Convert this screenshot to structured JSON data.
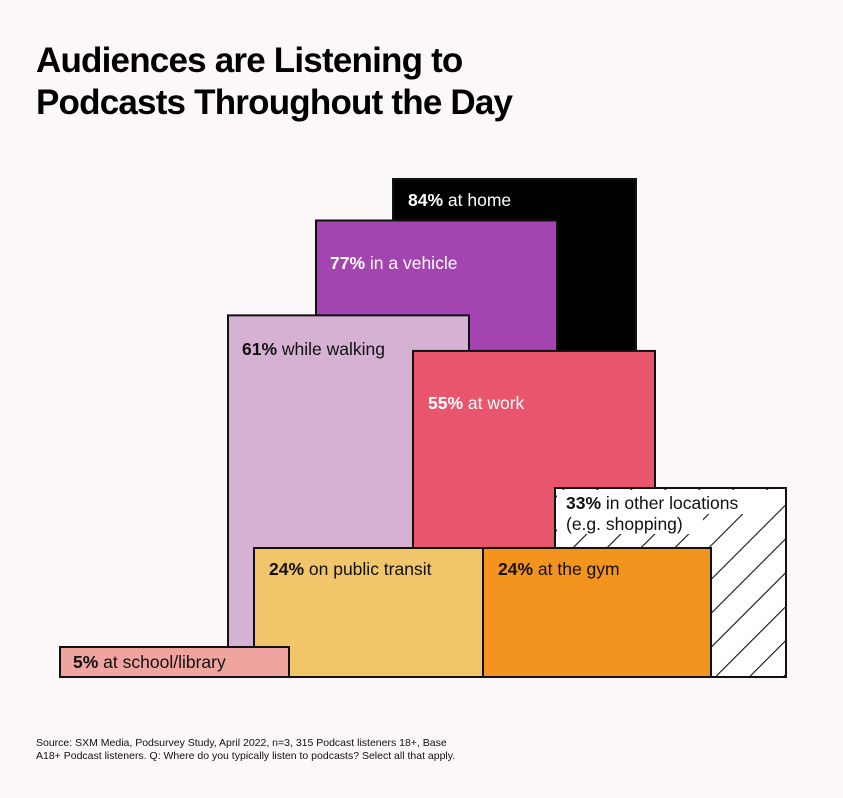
{
  "title_lines": [
    "Audiences are Listening to",
    "Podcasts Throughout the Day"
  ],
  "source_lines": [
    "Source: SXM Media, Podsurvey Study, April 2022, n=3, 315 Podcast listeners 18+, Base",
    "A18+ Podcast listeners. Q: Where do you typically listen to podcasts? Select all that apply."
  ],
  "chart_data": {
    "type": "bar",
    "title": "Audiences are Listening to Podcasts Throughout the Day",
    "unit": "%",
    "categories": [
      "at home",
      "in a vehicle",
      "while walking",
      "at work",
      "in other locations (e.g. shopping)",
      "on public transit",
      "at the gym",
      "at school/library"
    ],
    "values": [
      84,
      77,
      61,
      55,
      33,
      24,
      24,
      5
    ],
    "items": [
      {
        "key": "home",
        "value": 84,
        "pct": "84%",
        "lines": [
          "at home"
        ],
        "color": "#000000",
        "text_color": "#ffffff"
      },
      {
        "key": "vehicle",
        "value": 77,
        "pct": "77%",
        "lines": [
          "in a vehicle"
        ],
        "color": "#a444b0",
        "text_color": "#ffffff"
      },
      {
        "key": "walking",
        "value": 61,
        "pct": "61%",
        "lines": [
          "while walking"
        ],
        "color": "#d5b1d4",
        "text_color": "#111111"
      },
      {
        "key": "work",
        "value": 55,
        "pct": "55%",
        "lines": [
          "at work"
        ],
        "color": "#e8556c",
        "text_color": "#ffffff"
      },
      {
        "key": "other",
        "value": 33,
        "pct": "33%",
        "lines": [
          "in other locations",
          "(e.g. shopping)"
        ],
        "color": "hatched",
        "text_color": "#111111"
      },
      {
        "key": "transit",
        "value": 24,
        "pct": "24%",
        "lines": [
          "on public transit"
        ],
        "color": "#f1c56a",
        "text_color": "#111111"
      },
      {
        "key": "gym",
        "value": 24,
        "pct": "24%",
        "lines": [
          "at the gym"
        ],
        "color": "#f3941f",
        "text_color": "#111111"
      },
      {
        "key": "school",
        "value": 5,
        "pct": "5%",
        "lines": [
          "at school/library"
        ],
        "color": "#efa4a0",
        "text_color": "#111111"
      }
    ]
  }
}
